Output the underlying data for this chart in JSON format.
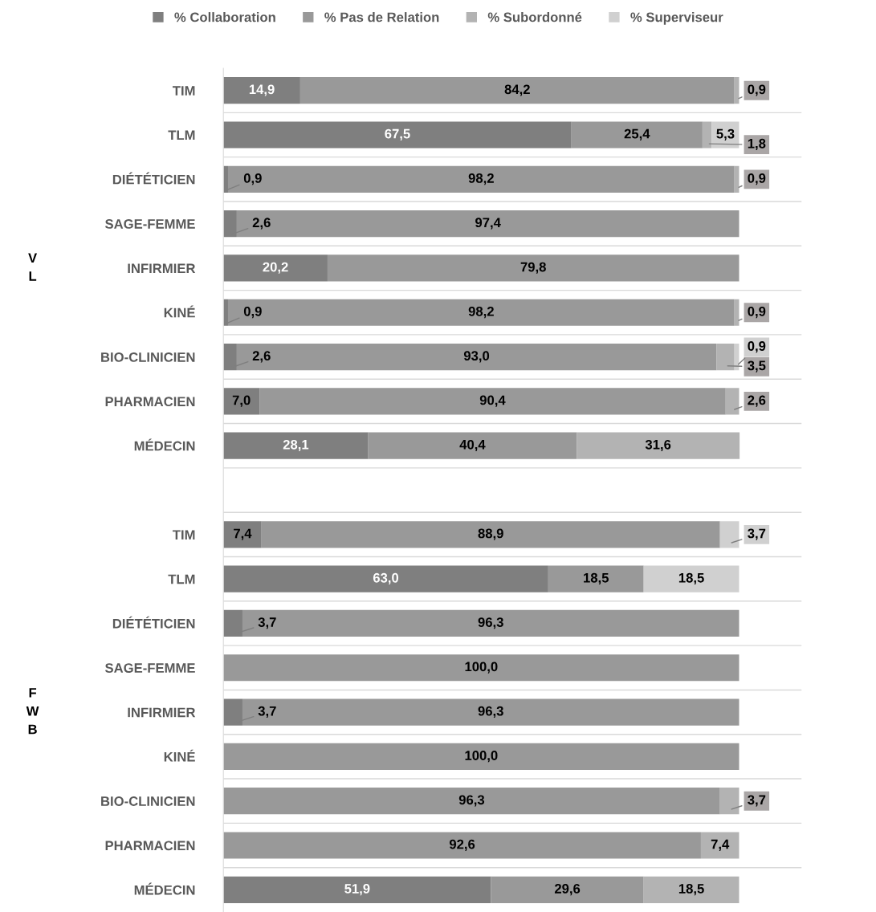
{
  "chart_data": {
    "type": "bar",
    "orientation": "horizontal",
    "stacked": true,
    "data_labels": true,
    "legend": "top",
    "grid": "y",
    "categories": [
      "TIM",
      "TLM",
      "DIÉTÉTICIEN",
      "SAGE-FEMME",
      "INFIRMIER",
      "KINÉ",
      "BIO-CLINICIEN",
      "PHARMACIEN",
      "MÉDECIN",
      null,
      "TIM",
      "TLM",
      "DIÉTÉTICIEN",
      "SAGE-FEMME",
      "INFIRMIER",
      "KINÉ",
      "BIO-CLINICIEN",
      "PHARMACIEN",
      "MÉDECIN"
    ],
    "series": [
      {
        "name": "% Collaboration",
        "color": "#7f7f7f",
        "values": [
          14.9,
          67.5,
          0.9,
          2.6,
          20.2,
          0.9,
          2.6,
          7.0,
          28.1,
          null,
          7.4,
          63.0,
          3.7,
          0,
          3.7,
          0,
          0,
          0,
          51.9
        ],
        "value_labels": [
          "14,9",
          "67,5",
          "0,9",
          "2,6",
          "20,2",
          "0,9",
          "2,6",
          "7,0",
          "28,1",
          null,
          "7,4",
          "63,0",
          "3,7",
          null,
          "3,7",
          null,
          null,
          null,
          "51,9"
        ]
      },
      {
        "name": "% Pas de Relation",
        "color": "#999999",
        "values": [
          84.2,
          25.4,
          98.2,
          97.4,
          79.8,
          98.2,
          93.0,
          90.4,
          40.4,
          null,
          88.9,
          18.5,
          96.3,
          100.0,
          96.3,
          100.0,
          96.3,
          92.6,
          29.6
        ],
        "value_labels": [
          "84,2",
          "25,4",
          "98,2",
          "97,4",
          "79,8",
          "98,2",
          "93,0",
          "90,4",
          "40,4",
          null,
          "88,9",
          "18,5",
          "96,3",
          "100,0",
          "96,3",
          "100,0",
          "96,3",
          "92,6",
          "29,6"
        ]
      },
      {
        "name": "% Subordonné",
        "color": "#b3b3b3",
        "values": [
          0.9,
          1.8,
          0.9,
          0,
          0,
          0.9,
          3.5,
          2.6,
          31.6,
          null,
          0,
          0,
          0,
          0,
          0,
          0,
          3.7,
          7.4,
          18.5
        ],
        "value_labels": [
          "0,9",
          "1,8",
          "0,9",
          null,
          null,
          "0,9",
          "3,5",
          "2,6",
          "31,6",
          null,
          null,
          null,
          null,
          null,
          null,
          null,
          "3,7",
          "7,4",
          "18,5"
        ]
      },
      {
        "name": "% Superviseur",
        "color": "#d0d0d0",
        "values": [
          0,
          5.3,
          0,
          0,
          0,
          0,
          0.9,
          0,
          0,
          null,
          3.7,
          18.5,
          0,
          0,
          0,
          0,
          0,
          0,
          0
        ],
        "value_labels": [
          null,
          "5,3",
          null,
          null,
          null,
          null,
          "0,9",
          null,
          null,
          null,
          "3,7",
          "18,5",
          null,
          null,
          null,
          null,
          null,
          null,
          null
        ]
      }
    ],
    "annotations": [
      "V\nL",
      "F\nW\nB"
    ]
  }
}
